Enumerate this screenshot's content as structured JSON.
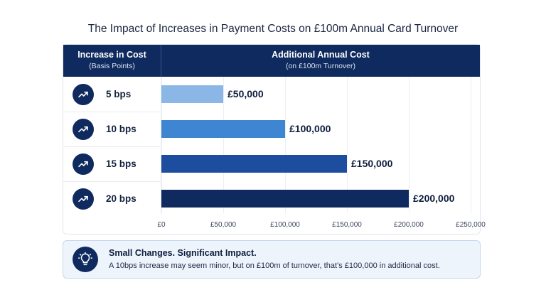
{
  "header_left": {
    "title": "Increase in Cost",
    "subtitle": "(Basis Points)"
  },
  "header_right": {
    "title": "Additional Annual Cost",
    "subtitle": "(on £100m Turnover)"
  },
  "chart_data": {
    "type": "bar",
    "title": "The Impact of Increases in Payment Costs on £100m Annual Card Turnover",
    "orientation": "horizontal",
    "categories": [
      "5 bps",
      "10 bps",
      "15 bps",
      "20 bps"
    ],
    "values": [
      50000,
      100000,
      150000,
      200000
    ],
    "data_labels": [
      "£50,000",
      "£100,000",
      "£150,000",
      "£200,000"
    ],
    "bar_colors": [
      "#8ab7e6",
      "#3f86d2",
      "#1c4d9e",
      "#0f2a5e"
    ],
    "xlim": [
      0,
      250000
    ],
    "xticks": [
      "£0",
      "£50,000",
      "£100,000",
      "£150,000",
      "£200,000",
      "£250,000"
    ],
    "grid": true
  },
  "callout": {
    "title": "Small Changes. Significant Impact.",
    "text": "A 10bps increase may seem minor, but on £100m of turnover, that’s £100,000 in additional cost."
  },
  "icons": {
    "row_icon": "trend-up-icon",
    "callout_icon": "lightbulb-icon"
  },
  "colors": {
    "header": "#0f2a5e",
    "callout_bg": "#eef4fc"
  }
}
